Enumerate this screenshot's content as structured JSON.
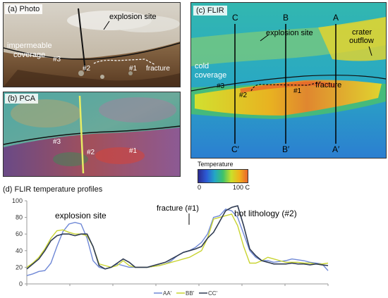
{
  "panels": {
    "photo": {
      "label": "(a) Photo",
      "annotations": [
        "explosion site",
        "impermeable",
        "coverage",
        "#3",
        "#2",
        "#1",
        "fracture"
      ]
    },
    "pca": {
      "label": "(b) PCA",
      "annotations": [
        "#3",
        "#2",
        "#1"
      ]
    },
    "flir": {
      "label": "(c) FLIR",
      "annotations": [
        "explosion site",
        "crater",
        "outflow",
        "cold",
        "coverage",
        "#3",
        "#2",
        "#1",
        "fracture"
      ],
      "profile_labels_top": [
        "C",
        "B",
        "A"
      ],
      "profile_labels_bottom": [
        "C′",
        "B′",
        "A′"
      ]
    }
  },
  "colorbar": {
    "title": "Temperature",
    "min_label": "0",
    "max_label": "100 C",
    "colors": [
      "#2b2a8f",
      "#2c5bd6",
      "#23a6c6",
      "#3dc26a",
      "#c9e02a",
      "#f1b21c",
      "#e8662b"
    ]
  },
  "profiles_title": "(d) FLIR temperature profiles",
  "chart_data": {
    "type": "line",
    "ylim": [
      0,
      100
    ],
    "y_ticks": [
      0,
      20,
      40,
      60,
      80,
      100
    ],
    "annotations": [
      "explosion site",
      "fracture (#1)",
      "hot lithology (#2)"
    ],
    "legend": [
      "AA'",
      "BB'",
      "CC'"
    ],
    "legend_placement": "bottom-center",
    "series": [
      {
        "name": "AA'",
        "color": "#6f88d6",
        "values": [
          10,
          12,
          15,
          16,
          25,
          45,
          63,
          72,
          74,
          72,
          55,
          28,
          20,
          18,
          20,
          24,
          22,
          20,
          20,
          20,
          20,
          21,
          22,
          24,
          28,
          34,
          38,
          40,
          44,
          50,
          60,
          80,
          82,
          90,
          88,
          80,
          60,
          40,
          32,
          28,
          28,
          26,
          27,
          28,
          30,
          29,
          28,
          26,
          25,
          24,
          16
        ]
      },
      {
        "name": "BB'",
        "color": "#c9d431",
        "values": [
          20,
          25,
          32,
          42,
          55,
          64,
          65,
          62,
          60,
          60,
          58,
          45,
          24,
          22,
          20,
          22,
          28,
          22,
          20,
          20,
          20,
          21,
          22,
          24,
          26,
          28,
          30,
          32,
          36,
          40,
          55,
          78,
          80,
          82,
          84,
          70,
          45,
          25,
          25,
          28,
          32,
          30,
          28,
          26,
          26,
          26,
          25,
          25,
          24,
          24,
          25
        ]
      },
      {
        "name": "CC'",
        "color": "#2f3b52",
        "values": [
          18,
          24,
          30,
          40,
          52,
          58,
          60,
          60,
          58,
          60,
          60,
          45,
          22,
          18,
          20,
          25,
          30,
          26,
          20,
          20,
          20,
          22,
          24,
          26,
          30,
          34,
          38,
          40,
          42,
          45,
          55,
          62,
          75,
          88,
          92,
          94,
          70,
          42,
          34,
          28,
          26,
          24,
          24,
          24,
          25,
          24,
          24,
          23,
          24,
          23,
          22
        ]
      }
    ]
  }
}
